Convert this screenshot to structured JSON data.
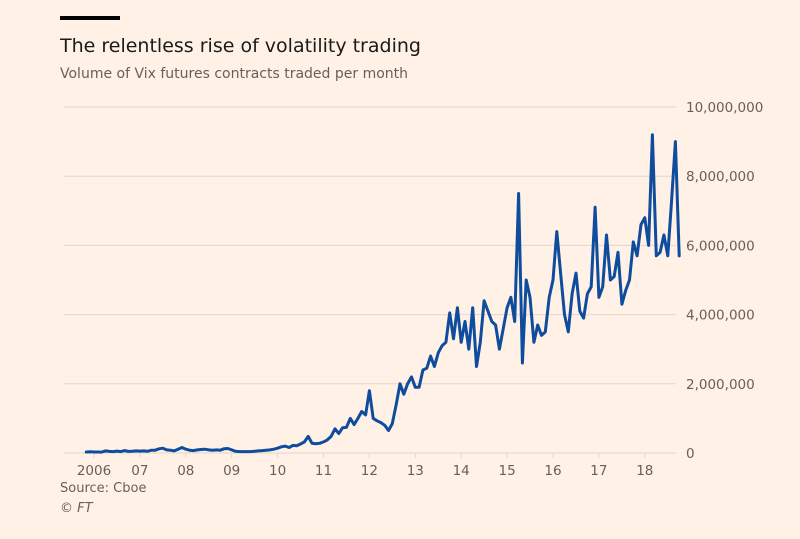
{
  "header": {
    "title": "The relentless rise of volatility trading",
    "subtitle": "Volume of Vix futures contracts traded per month"
  },
  "footer": {
    "source": "Source: Cboe",
    "credit": "© FT"
  },
  "colors": {
    "background": "#fff1e5",
    "line": "#0f4c9e",
    "grid": "#e2d7cc",
    "text": "#66605a"
  },
  "chart_data": {
    "type": "line",
    "title": "The relentless rise of volatility trading",
    "subtitle": "Volume of Vix futures contracts traded per month",
    "xlabel": "",
    "ylabel": "",
    "x_start": "2005-11",
    "x_frequency": "monthly",
    "xlim": [
      2005.8,
      2018.8
    ],
    "ylim": [
      0,
      10000000
    ],
    "grid": true,
    "y_axis_position": "right",
    "x_ticks": [
      {
        "value": 2006,
        "label": "2006"
      },
      {
        "value": 2007,
        "label": "07"
      },
      {
        "value": 2008,
        "label": "08"
      },
      {
        "value": 2009,
        "label": "09"
      },
      {
        "value": 2010,
        "label": "10"
      },
      {
        "value": 2011,
        "label": "11"
      },
      {
        "value": 2012,
        "label": "12"
      },
      {
        "value": 2013,
        "label": "13"
      },
      {
        "value": 2014,
        "label": "14"
      },
      {
        "value": 2015,
        "label": "15"
      },
      {
        "value": 2016,
        "label": "16"
      },
      {
        "value": 2017,
        "label": "17"
      },
      {
        "value": 2018,
        "label": "18"
      }
    ],
    "y_ticks": [
      {
        "value": 0,
        "label": "0"
      },
      {
        "value": 2000000,
        "label": "2,000,000"
      },
      {
        "value": 4000000,
        "label": "4,000,000"
      },
      {
        "value": 6000000,
        "label": "6,000,000"
      },
      {
        "value": 8000000,
        "label": "8,000,000"
      },
      {
        "value": 10000000,
        "label": "10,000,000"
      }
    ],
    "series": [
      {
        "name": "Vix futures contracts traded per month",
        "values": [
          30000,
          35000,
          30000,
          30000,
          25000,
          60000,
          45000,
          40000,
          55000,
          40000,
          70000,
          45000,
          50000,
          60000,
          55000,
          60000,
          50000,
          80000,
          80000,
          120000,
          140000,
          90000,
          80000,
          60000,
          110000,
          160000,
          110000,
          80000,
          70000,
          90000,
          100000,
          110000,
          90000,
          80000,
          90000,
          80000,
          120000,
          130000,
          90000,
          50000,
          40000,
          40000,
          40000,
          40000,
          50000,
          60000,
          70000,
          80000,
          90000,
          110000,
          140000,
          180000,
          200000,
          160000,
          220000,
          210000,
          260000,
          320000,
          480000,
          280000,
          270000,
          280000,
          320000,
          380000,
          480000,
          700000,
          560000,
          730000,
          740000,
          1000000,
          820000,
          1000000,
          1200000,
          1100000,
          1800000,
          1000000,
          930000,
          880000,
          800000,
          650000,
          850000,
          1400000,
          2000000,
          1700000,
          2000000,
          2200000,
          1900000,
          1900000,
          2400000,
          2450000,
          2800000,
          2500000,
          2900000,
          3100000,
          3200000,
          4050000,
          3300000,
          4200000,
          3200000,
          3800000,
          3000000,
          4200000,
          2500000,
          3200000,
          4400000,
          4100000,
          3800000,
          3700000,
          3000000,
          3600000,
          4200000,
          4500000,
          3800000,
          7500000,
          2600000,
          5000000,
          4500000,
          3200000,
          3700000,
          3400000,
          3500000,
          4500000,
          5000000,
          6400000,
          5200000,
          4000000,
          3500000,
          4600000,
          5200000,
          4100000,
          3900000,
          4600000,
          4800000,
          7100000,
          4500000,
          4800000,
          6300000,
          5000000,
          5100000,
          5800000,
          4300000,
          4700000,
          5000000,
          6100000,
          5700000,
          6600000,
          6800000,
          6000000,
          9200000,
          5700000,
          5800000,
          6300000,
          5700000,
          7300000,
          9000000,
          5700000
        ]
      }
    ]
  }
}
